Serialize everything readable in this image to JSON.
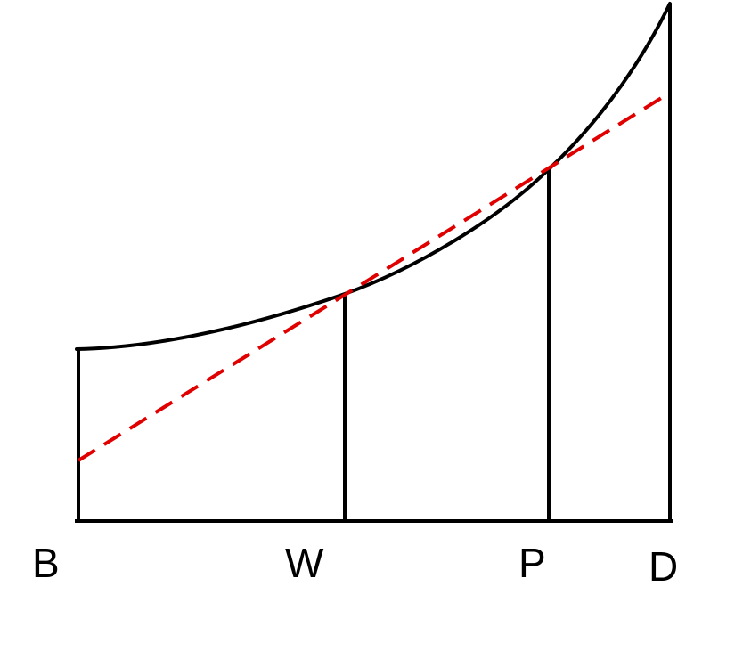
{
  "diagram": {
    "points": {
      "b": "B",
      "w": "W",
      "p": "P",
      "d": "D"
    },
    "colors": {
      "curve": "#000000",
      "secant": "#e00000",
      "frame": "#000000"
    }
  }
}
